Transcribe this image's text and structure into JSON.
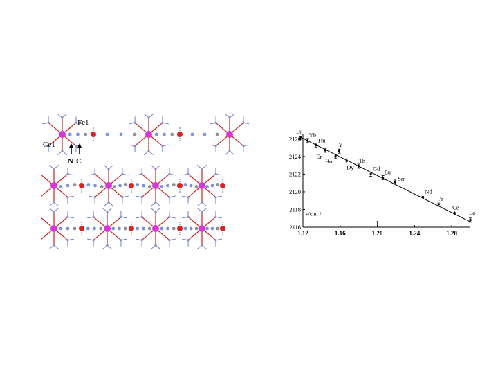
{
  "structure": {
    "labels": {
      "ce": "Ce1",
      "fe": "Fe1",
      "n": "N",
      "c": "C"
    },
    "colors": {
      "lanthanide": "#d836d8",
      "iron": "#e02020",
      "nitrogen": "#8090e0",
      "carbon": "#909090",
      "oxygen": "#d02020",
      "bond": "#7080c0"
    }
  },
  "chart_data": {
    "type": "scatter",
    "title": "",
    "xlabel": "",
    "ylabel": "ν/cm⁻¹",
    "xlim": [
      1.12,
      1.3
    ],
    "ylim": [
      2116,
      2126.5
    ],
    "xticks": [
      "1.12",
      "1.16",
      "1.20",
      "1.24",
      "1.28"
    ],
    "xtick_values": [
      1.12,
      1.16,
      1.2,
      1.24,
      1.28
    ],
    "yticks": [
      "2116",
      "2118",
      "2120",
      "2122",
      "2124",
      "2126"
    ],
    "ytick_values": [
      2116,
      2118,
      2120,
      2122,
      2124,
      2126
    ],
    "series": [
      {
        "points": [
          {
            "label": "Lu",
            "x": 1.117,
            "y": 2126.0
          },
          {
            "label": "Yb",
            "x": 1.125,
            "y": 2125.8
          },
          {
            "label": "Tm",
            "x": 1.134,
            "y": 2125.3
          },
          {
            "label": "Er",
            "x": 1.144,
            "y": 2124.7
          },
          {
            "label": "Y",
            "x": 1.159,
            "y": 2124.6
          },
          {
            "label": "Ho",
            "x": 1.155,
            "y": 2124.0
          },
          {
            "label": "Dy",
            "x": 1.167,
            "y": 2123.5
          },
          {
            "label": "Tb",
            "x": 1.18,
            "y": 2122.9
          },
          {
            "label": "Gd",
            "x": 1.193,
            "y": 2122.0
          },
          {
            "label": "Eu",
            "x": 1.206,
            "y": 2121.6
          },
          {
            "label": "Sm",
            "x": 1.219,
            "y": 2121.1
          },
          {
            "label": "Nd",
            "x": 1.249,
            "y": 2119.4
          },
          {
            "label": "Pr",
            "x": 1.266,
            "y": 2118.6
          },
          {
            "label": "Ce",
            "x": 1.283,
            "y": 2117.6
          },
          {
            "label": "La",
            "x": 1.3,
            "y": 2116.8
          }
        ]
      }
    ],
    "fit_line": {
      "x": [
        1.117,
        1.3
      ],
      "y": [
        2126.2,
        2116.6
      ]
    },
    "grid": false,
    "legend": "none"
  }
}
